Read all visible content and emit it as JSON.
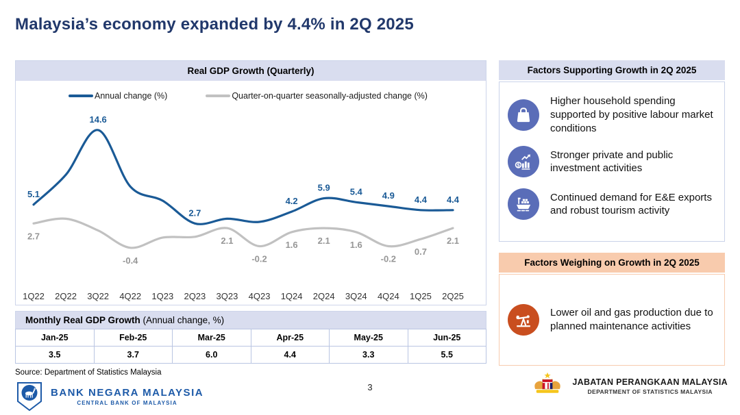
{
  "title": "Malaysia’s economy expanded by 4.4% in 2Q 2025",
  "chart": {
    "header": "Real GDP Growth (Quarterly)",
    "legend": [
      {
        "label": "Annual change (%)",
        "color": "#1A5A96"
      },
      {
        "label": "Quarter-on-quarter seasonally-adjusted change (%)",
        "color": "#C1C1C1"
      }
    ]
  },
  "chart_data": {
    "type": "line",
    "title": "Real GDP Growth (Quarterly)",
    "categories": [
      "1Q22",
      "2Q22",
      "3Q22",
      "4Q22",
      "1Q23",
      "2Q23",
      "3Q23",
      "4Q23",
      "1Q24",
      "2Q24",
      "3Q24",
      "4Q24",
      "1Q25",
      "2Q25"
    ],
    "series": [
      {
        "name": "Annual change (%)",
        "color": "#1A5A96",
        "label_color": "#1A5A96",
        "label_position": "above",
        "values": [
          5.1,
          8.9,
          14.6,
          7.4,
          5.6,
          2.7,
          3.3,
          2.9,
          4.2,
          5.9,
          5.4,
          4.9,
          4.4,
          4.4
        ],
        "labels": [
          "5.1",
          null,
          "14.6",
          null,
          null,
          "2.7",
          null,
          null,
          "4.2",
          "5.9",
          "5.4",
          "4.9",
          "4.4",
          "4.4"
        ]
      },
      {
        "name": "Quarter-on-quarter seasonally-adjusted change (%)",
        "color": "#C1C1C1",
        "label_color": "#969696",
        "label_position": "below",
        "values": [
          2.7,
          3.3,
          1.8,
          -0.4,
          0.9,
          1.0,
          2.1,
          -0.2,
          1.6,
          2.1,
          1.6,
          -0.2,
          0.7,
          2.1
        ],
        "labels": [
          "2.7",
          null,
          null,
          "-0.4",
          null,
          null,
          "2.1",
          "-0.2",
          "1.6",
          "2.1",
          "1.6",
          "-0.2",
          "0.7",
          "2.1"
        ]
      }
    ],
    "ylim": [
      -2.6,
      16.6
    ],
    "grid": false,
    "legend_position": "top"
  },
  "monthly_table": {
    "title_bold": "Monthly Real GDP Growth",
    "title_rest": " (Annual change, %)",
    "columns": [
      "Jan-25",
      "Feb-25",
      "Mar-25",
      "Apr-25",
      "May-25",
      "Jun-25"
    ],
    "values": [
      "3.5",
      "3.7",
      "6.0",
      "4.4",
      "3.3",
      "5.5"
    ]
  },
  "supporting": {
    "header": "Factors Supporting Growth in 2Q 2025",
    "items": [
      {
        "icon": "shopping-bag-icon",
        "text": "Higher household spending supported by positive labour market conditions"
      },
      {
        "icon": "investment-chart-icon",
        "text": "Stronger private and public investment activities"
      },
      {
        "icon": "cargo-ship-icon",
        "text": "Continued demand for E&E exports and robust tourism activity"
      }
    ]
  },
  "weighing": {
    "header": "Factors Weighing on Growth in 2Q 2025",
    "items": [
      {
        "icon": "oil-pump-icon",
        "text": "Lower oil and gas production due to planned maintenance activities"
      }
    ]
  },
  "footer": {
    "source": "Source: Department of Statistics Malaysia",
    "page_number": "3",
    "bnm": {
      "line1": "BANK NEGARA MALAYSIA",
      "line2": "CENTRAL BANK OF MALAYSIA"
    },
    "dosm": {
      "line1": "JABATAN PERANGKAAN MALAYSIA",
      "line2": "DEPARTMENT OF STATISTICS MALAYSIA"
    }
  },
  "colors": {
    "title_navy": "#21386B",
    "line_blue": "#1A5A96",
    "line_gray": "#C1C1C1",
    "header_lavender": "#D9DDEF",
    "header_peach": "#F8CBAD",
    "icon_blue": "#5A6DB8",
    "icon_orange": "#C94E1F"
  }
}
